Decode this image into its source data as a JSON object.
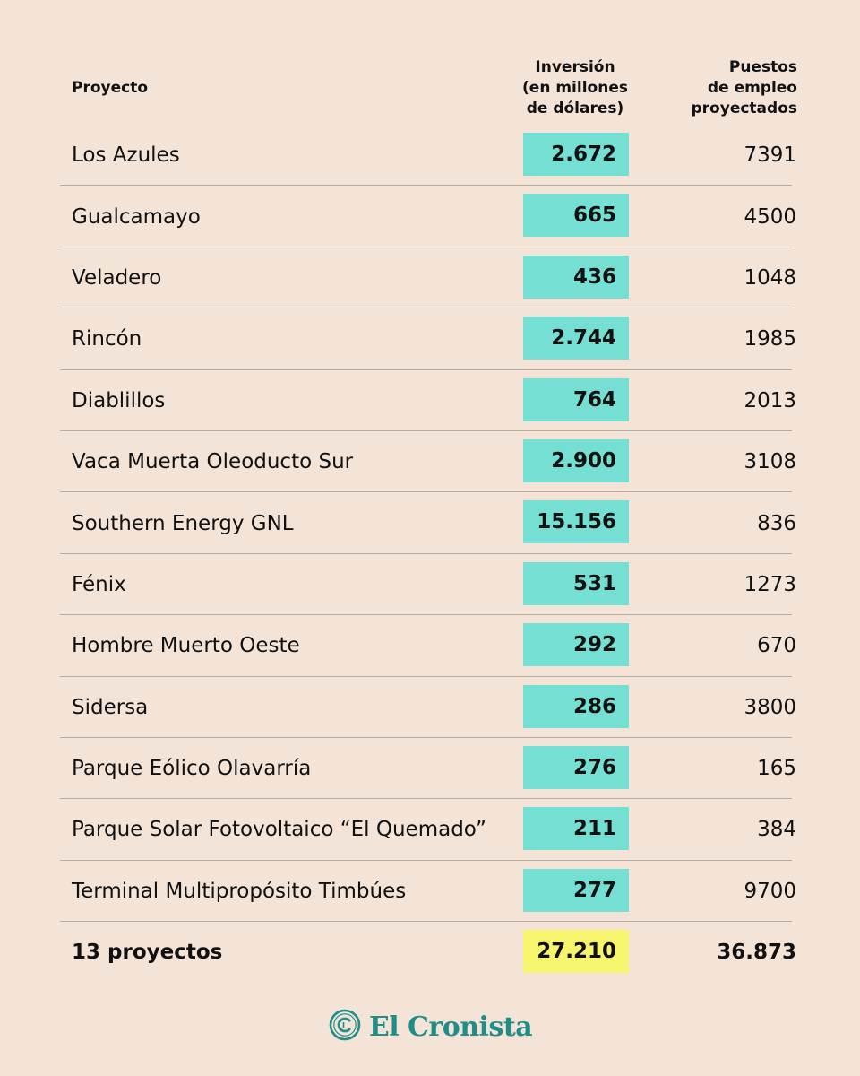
{
  "header": {
    "proyecto": "Proyecto",
    "inversion_lines": [
      "Inversión",
      "(en millones",
      "de dólares)"
    ],
    "puestos_lines": [
      "Puestos",
      "de empleo",
      "proyectados"
    ]
  },
  "rows": [
    {
      "proyecto": "Los Azules",
      "inversion": "2.672",
      "puestos": "7391"
    },
    {
      "proyecto": "Gualcamayo",
      "inversion": "665",
      "puestos": "4500"
    },
    {
      "proyecto": "Veladero",
      "inversion": "436",
      "puestos": "1048"
    },
    {
      "proyecto": "Rincón",
      "inversion": "2.744",
      "puestos": "1985"
    },
    {
      "proyecto": "Diablillos",
      "inversion": "764",
      "puestos": "2013"
    },
    {
      "proyecto": "Vaca Muerta Oleoducto Sur",
      "inversion": "2.900",
      "puestos": "3108"
    },
    {
      "proyecto": "Southern Energy GNL",
      "inversion": "15.156",
      "puestos": "836"
    },
    {
      "proyecto": "Fénix",
      "inversion": "531",
      "puestos": "1273"
    },
    {
      "proyecto": "Hombre Muerto Oeste",
      "inversion": "292",
      "puestos": "670"
    },
    {
      "proyecto": "Sidersa",
      "inversion": "286",
      "puestos": "3800"
    },
    {
      "proyecto": "Parque Eólico Olavarría",
      "inversion": "276",
      "puestos": "165"
    },
    {
      "proyecto": "Parque Solar Fotovoltaico “El Quemado”",
      "inversion": "211",
      "puestos": "384"
    },
    {
      "proyecto": "Terminal Multipropósito Timbúes",
      "inversion": "277",
      "puestos": "9700"
    }
  ],
  "total": {
    "proyecto": "13 proyectos",
    "inversion": "27.210",
    "puestos": "36.873"
  },
  "logo": {
    "text": "El Cronista",
    "icon": "copyright-c-icon"
  },
  "colors": {
    "background": "#f4e4d8",
    "investment_highlight": "#74dfd2",
    "total_highlight": "#f7f56e",
    "brand": "#1f8d88"
  },
  "chart_data": {
    "type": "table",
    "columns": [
      "Proyecto",
      "Inversión (en millones de dólares)",
      "Puestos de empleo proyectados"
    ],
    "rows": [
      [
        "Los Azules",
        2672,
        7391
      ],
      [
        "Gualcamayo",
        665,
        4500
      ],
      [
        "Veladero",
        436,
        1048
      ],
      [
        "Rincón",
        2744,
        1985
      ],
      [
        "Diablillos",
        764,
        2013
      ],
      [
        "Vaca Muerta Oleoducto Sur",
        2900,
        3108
      ],
      [
        "Southern Energy GNL",
        15156,
        836
      ],
      [
        "Fénix",
        531,
        1273
      ],
      [
        "Hombre Muerto Oeste",
        292,
        670
      ],
      [
        "Sidersa",
        286,
        3800
      ],
      [
        "Parque Eólico Olavarría",
        276,
        165
      ],
      [
        "Parque Solar Fotovoltaico “El Quemado”",
        211,
        384
      ],
      [
        "Terminal Multipropósito Timbúes",
        277,
        9700
      ]
    ],
    "total": [
      "13 proyectos",
      27210,
      36873
    ]
  }
}
